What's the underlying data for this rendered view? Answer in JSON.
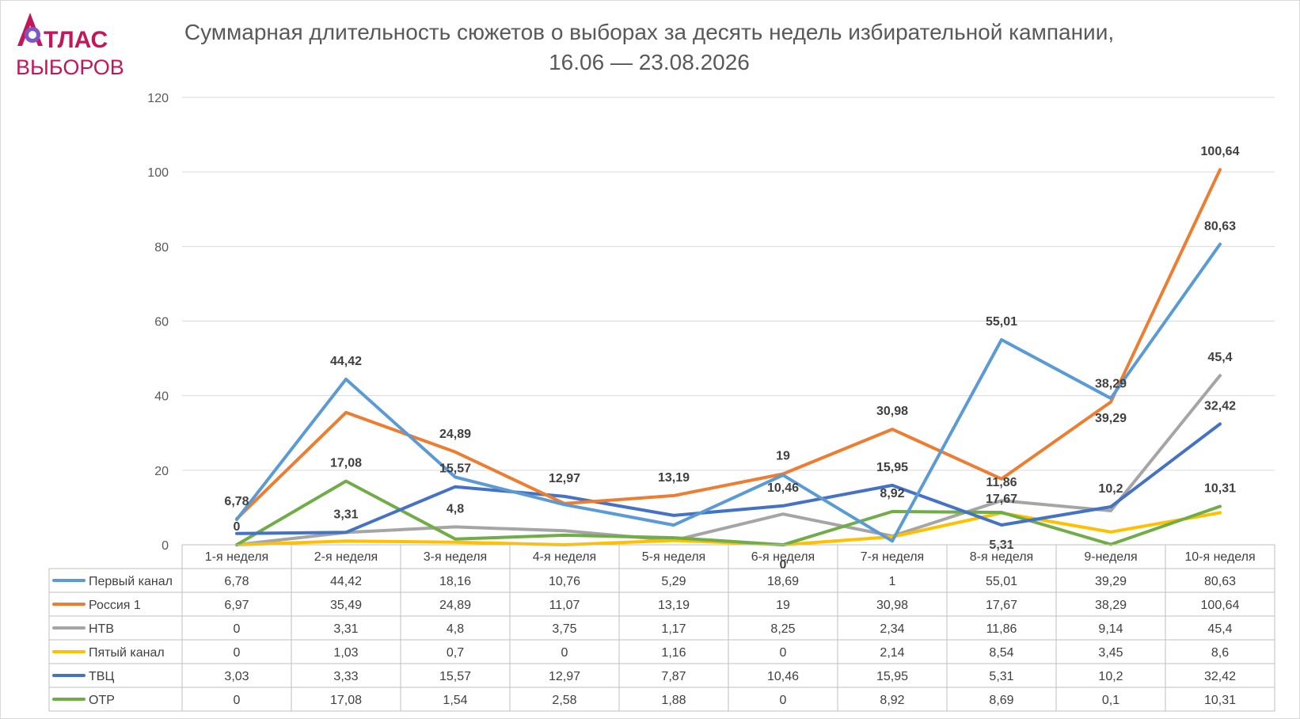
{
  "logo": {
    "line1": "ТЛАС",
    "line2": "ВЫБОРОВ",
    "accent": "#c2185b",
    "dot_color": "#7e57c2"
  },
  "title_line1": "Суммарная длительность сюжетов о выборах за десять недель избирательной кампании,",
  "title_line2": "16.06 — 23.08.2026",
  "chart_data": {
    "type": "line",
    "title": "Суммарная длительность сюжетов о выборах за десять недель избирательной кампании, 16.06 — 23.08.2026",
    "categories": [
      "1-я неделя",
      "2-я неделя",
      "3-я неделя",
      "4-я неделя",
      "5-я неделя",
      "6-я неделя",
      "7-я неделя",
      "8-я неделя",
      "9-неделя",
      "10-я неделя"
    ],
    "ylim": [
      0,
      120
    ],
    "yticks": [
      0,
      20,
      40,
      60,
      80,
      100,
      120
    ],
    "grid": true,
    "legend": "data-table",
    "series": [
      {
        "name": "Первый канал",
        "color": "#5b9bd5",
        "values": [
          6.78,
          44.42,
          18.16,
          10.76,
          5.29,
          18.69,
          1,
          55.01,
          39.29,
          80.63
        ],
        "labels": [
          "6,78",
          "44,42",
          "18,16",
          "10,76",
          "5,29",
          "18,69",
          "1",
          "55,01",
          "39,29",
          "80,63"
        ]
      },
      {
        "name": "Россия 1",
        "color": "#ed7d31",
        "values": [
          6.97,
          35.49,
          24.89,
          11.07,
          13.19,
          19,
          30.98,
          17.67,
          38.29,
          100.64
        ],
        "labels": [
          "6,97",
          "35,49",
          "24,89",
          "11,07",
          "13,19",
          "19",
          "30,98",
          "17,67",
          "38,29",
          "100,64"
        ]
      },
      {
        "name": "НТВ",
        "color": "#a5a5a5",
        "values": [
          0,
          3.31,
          4.8,
          3.75,
          1.17,
          8.25,
          2.34,
          11.86,
          9.14,
          45.4
        ],
        "labels": [
          "0",
          "3,31",
          "4,8",
          "3,75",
          "1,17",
          "8,25",
          "2,34",
          "11,86",
          "9,14",
          "45,4"
        ]
      },
      {
        "name": "Пятый канал",
        "color": "#ffc000",
        "values": [
          0,
          1.03,
          0.7,
          0,
          1.16,
          0,
          2.14,
          8.54,
          3.45,
          8.6
        ],
        "labels": [
          "0",
          "1,03",
          "0,7",
          "0",
          "1,16",
          "0",
          "2,14",
          "8,54",
          "3,45",
          "8,6"
        ]
      },
      {
        "name": "ТВЦ",
        "color": "#4472c4",
        "values": [
          3.03,
          3.33,
          15.57,
          12.97,
          7.87,
          10.46,
          15.95,
          5.31,
          10.2,
          32.42
        ],
        "labels": [
          "3,03",
          "3,33",
          "15,57",
          "12,97",
          "7,87",
          "10,46",
          "15,95",
          "5,31",
          "10,2",
          "32,42"
        ]
      },
      {
        "name": "ОТР",
        "color": "#70ad47",
        "values": [
          0,
          17.08,
          1.54,
          2.58,
          1.88,
          0,
          8.92,
          8.69,
          0.1,
          10.31
        ],
        "labels": [
          "0",
          "17,08",
          "1,54",
          "2,58",
          "1,88",
          "0",
          "8,92",
          "8,69",
          "0,1",
          "10,31"
        ]
      }
    ],
    "data_labels": [
      {
        "series": 0,
        "index": 0,
        "text": "6,78"
      },
      {
        "series": 0,
        "index": 1,
        "text": "44,42"
      },
      {
        "series": 0,
        "index": 7,
        "text": "55,01"
      },
      {
        "series": 0,
        "index": 8,
        "text": "39,29"
      },
      {
        "series": 0,
        "index": 9,
        "text": "80,63"
      },
      {
        "series": 1,
        "index": 2,
        "text": "24,89"
      },
      {
        "series": 1,
        "index": 4,
        "text": "13,19"
      },
      {
        "series": 1,
        "index": 5,
        "text": "19"
      },
      {
        "series": 1,
        "index": 6,
        "text": "30,98"
      },
      {
        "series": 1,
        "index": 7,
        "text": "17,67"
      },
      {
        "series": 1,
        "index": 8,
        "text": "38,29"
      },
      {
        "series": 1,
        "index": 9,
        "text": "100,64"
      },
      {
        "series": 2,
        "index": 0,
        "text": "0"
      },
      {
        "series": 2,
        "index": 1,
        "text": "3,31"
      },
      {
        "series": 2,
        "index": 2,
        "text": "4,8"
      },
      {
        "series": 2,
        "index": 7,
        "text": "11,86"
      },
      {
        "series": 2,
        "index": 9,
        "text": "45,4"
      },
      {
        "series": 4,
        "index": 2,
        "text": "15,57"
      },
      {
        "series": 4,
        "index": 3,
        "text": "12,97"
      },
      {
        "series": 4,
        "index": 5,
        "text": "10,46"
      },
      {
        "series": 4,
        "index": 6,
        "text": "15,95"
      },
      {
        "series": 4,
        "index": 7,
        "text": "5,31"
      },
      {
        "series": 4,
        "index": 8,
        "text": "10,2"
      },
      {
        "series": 4,
        "index": 9,
        "text": "32,42"
      },
      {
        "series": 5,
        "index": 1,
        "text": "17,08"
      },
      {
        "series": 5,
        "index": 5,
        "text": "0"
      },
      {
        "series": 5,
        "index": 6,
        "text": "8,92"
      },
      {
        "series": 5,
        "index": 9,
        "text": "10,31"
      }
    ]
  }
}
